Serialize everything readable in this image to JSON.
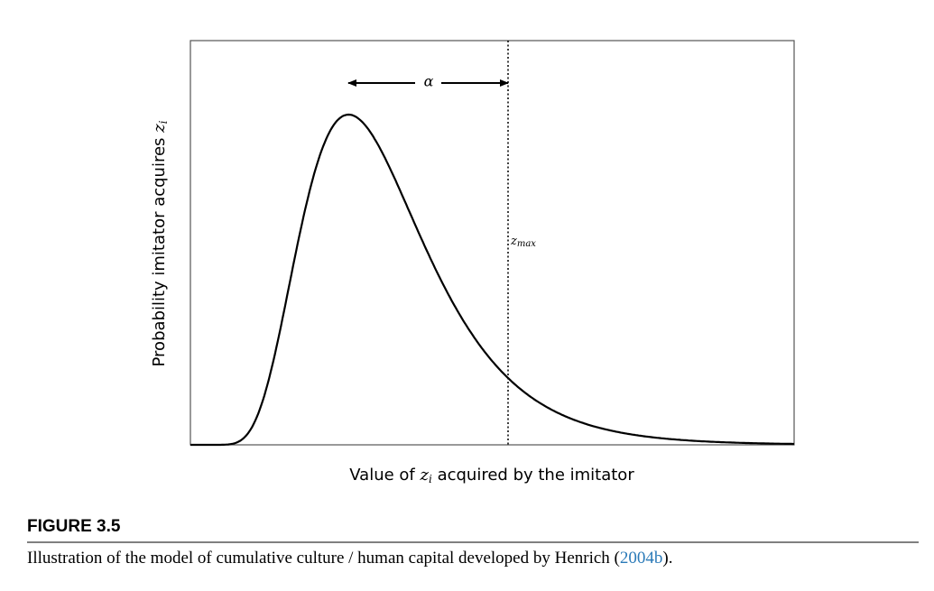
{
  "figure": {
    "annotation_alpha": "α",
    "annotation_zmax": {
      "base": "z",
      "sub": "max"
    },
    "y_label": {
      "text": "Probability imitator acquires",
      "var": "z",
      "sub": "i"
    },
    "x_label": {
      "before": "Value of",
      "var": "z",
      "sub": "i",
      "after": "acquired by the imitator"
    },
    "caption": {
      "label": "FIGURE 3.5",
      "text": "Illustration of the model of cumulative culture / human capital developed by Henrich (",
      "citation": "2004b",
      "end": ")."
    }
  }
}
